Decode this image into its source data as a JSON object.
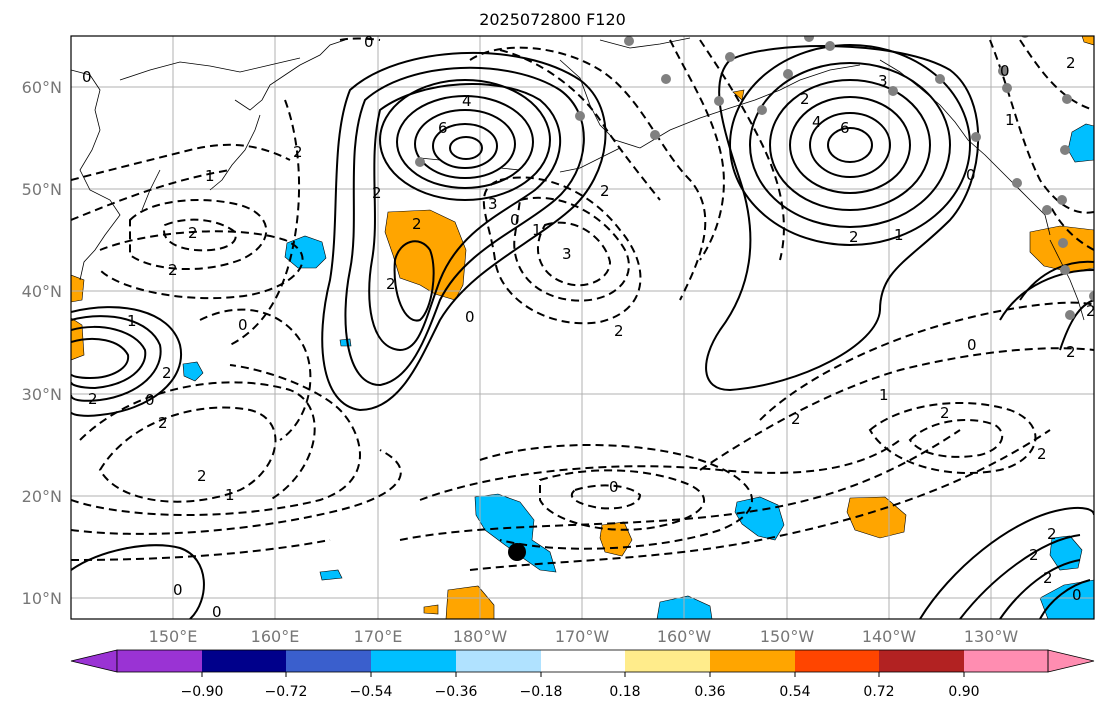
{
  "title": "2025072800 F120",
  "lat_labels": [
    "60°N",
    "50°N",
    "40°N",
    "30°N",
    "20°N",
    "10°N"
  ],
  "lon_labels": [
    "150°E",
    "160°E",
    "170°E",
    "180°W",
    "170°W",
    "160°W",
    "150°W",
    "140°W",
    "130°W"
  ],
  "colorbar": {
    "ticks": [
      "−0.90",
      "−0.72",
      "−0.54",
      "−0.36",
      "−0.18",
      "0.18",
      "0.36",
      "0.54",
      "0.72",
      "0.90"
    ],
    "colors": {
      "under": "#9a33d4",
      "bins": [
        "#9a33d4",
        "#00008b",
        "#3a5fcd",
        "#00bfff",
        "#b0e2ff",
        "#ffffff",
        "#ffec8b",
        "#ffa500",
        "#ff4500",
        "#b22222",
        "#ff8db1"
      ],
      "over": "#ff8db1"
    }
  },
  "contour_labels": [
    "0",
    "2",
    "2",
    "0",
    "2",
    "1",
    "2",
    "0",
    "2",
    "2",
    "1",
    "0",
    "2",
    "2",
    "2",
    "1",
    "0",
    "0",
    "4",
    "6",
    "2",
    "2",
    "3",
    "2",
    "0",
    "1",
    "3",
    "2",
    "0",
    "1",
    "2",
    "3",
    "2",
    "2",
    "0",
    "2",
    "4",
    "6",
    "2",
    "1",
    "3",
    "0",
    "2",
    "1",
    "1",
    "2",
    "2",
    "2",
    "2",
    "0",
    "2",
    "2",
    "0",
    "2",
    "0",
    "2"
  ],
  "map": {
    "anomaly_colors": {
      "positive": "#ffa500",
      "negative": "#00bfff"
    },
    "station_color": "#808080",
    "marker_color": "#000000"
  }
}
